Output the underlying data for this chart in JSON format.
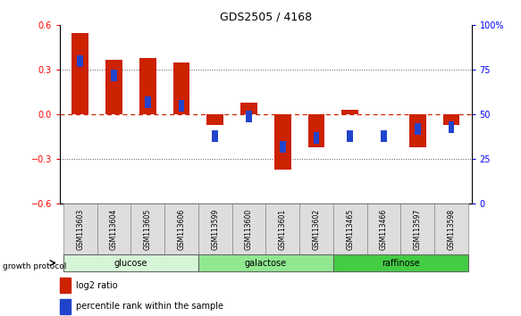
{
  "title": "GDS2505 / 4168",
  "samples": [
    "GSM113603",
    "GSM113604",
    "GSM113605",
    "GSM113606",
    "GSM113599",
    "GSM113600",
    "GSM113601",
    "GSM113602",
    "GSM113465",
    "GSM113466",
    "GSM113597",
    "GSM113598"
  ],
  "log2_ratio": [
    0.55,
    0.37,
    0.38,
    0.35,
    -0.07,
    0.08,
    -0.37,
    -0.22,
    0.03,
    0.0,
    -0.22,
    -0.07
  ],
  "pct_rank": [
    80,
    72,
    57,
    55,
    38,
    49,
    32,
    37,
    38,
    38,
    42,
    43
  ],
  "groups": [
    {
      "label": "glucose",
      "start": 0,
      "end": 4,
      "color": "#d6f5d6"
    },
    {
      "label": "galactose",
      "start": 4,
      "end": 8,
      "color": "#90e890"
    },
    {
      "label": "raffinose",
      "start": 8,
      "end": 12,
      "color": "#44cc44"
    }
  ],
  "ylim_left": [
    -0.6,
    0.6
  ],
  "ylim_right": [
    0,
    100
  ],
  "yticks_left": [
    -0.6,
    -0.3,
    0.0,
    0.3,
    0.6
  ],
  "yticks_right": [
    0,
    25,
    50,
    75,
    100
  ],
  "bar_color": "#cc2200",
  "pct_color": "#2244cc",
  "hline_color": "#cc2200",
  "dotline_color": "#555555",
  "label_bg": "#dddddd",
  "bar_width": 0.5,
  "pct_marker_size": 5
}
